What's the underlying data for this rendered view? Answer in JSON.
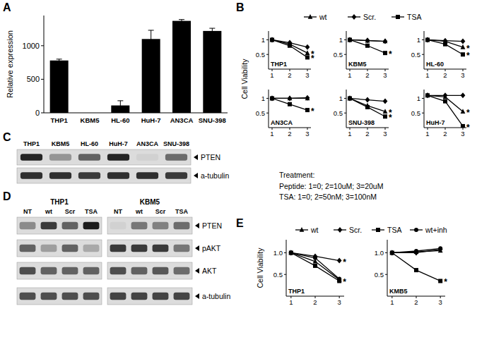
{
  "panel_labels": [
    "A",
    "B",
    "C",
    "D",
    "E"
  ],
  "chart_data": [
    {
      "type": "bar",
      "y_label": "Relative expression",
      "categories": [
        "THP1",
        "KBM5",
        "HL-60",
        "HuH-7",
        "AN3CA",
        "SNU-398"
      ],
      "values": [
        780,
        0,
        110,
        1100,
        1370,
        1220
      ],
      "errors": [
        20,
        0,
        70,
        130,
        20,
        40
      ],
      "color": "#000000",
      "ylim": [
        0,
        1450
      ],
      "yticks": [
        0,
        500,
        1000
      ]
    },
    {
      "type": "line",
      "title": "THP1",
      "y_label": "Cell Viability",
      "legend": "top",
      "x": [
        1,
        2,
        3
      ],
      "xlim": [
        0.8,
        3.2
      ],
      "xticks": [
        1,
        2,
        3
      ],
      "ylim": [
        0,
        1.3
      ],
      "yticks": [
        0.5,
        1
      ],
      "series": [
        {
          "name": "wt",
          "color": "#000000",
          "marker": "triangle",
          "line_style": "solid",
          "values": [
            1,
            0.85,
            0.55
          ]
        },
        {
          "name": "Scr.",
          "color": "#000000",
          "marker": "diamond",
          "line_style": "solid",
          "values": [
            1,
            0.9,
            0.75
          ]
        },
        {
          "name": "TSA",
          "color": "#000000",
          "marker": "square",
          "line_style": "solid",
          "values": [
            1,
            0.8,
            0.4
          ]
        }
      ],
      "annotations": [
        {
          "text": "*",
          "x": 3,
          "y": 0.55
        },
        {
          "text": "*",
          "x": 3,
          "y": 0.4
        }
      ]
    },
    {
      "type": "line",
      "title": "KBM5",
      "x": [
        1,
        2,
        3
      ],
      "xlim": [
        0.8,
        3.2
      ],
      "xticks": [
        1,
        2,
        3
      ],
      "ylim": [
        0,
        1.3
      ],
      "yticks": [
        0.5,
        1
      ],
      "series": [
        {
          "color": "#000000",
          "marker": "triangle",
          "line_style": "solid",
          "values": [
            1,
            0.97,
            0.95
          ]
        },
        {
          "color": "#000000",
          "marker": "diamond",
          "line_style": "solid",
          "values": [
            1,
            0.98,
            0.95
          ]
        },
        {
          "color": "#000000",
          "marker": "square",
          "line_style": "solid",
          "values": [
            1,
            0.8,
            0.55
          ]
        }
      ],
      "annotations": [
        {
          "text": "*",
          "x": 3,
          "y": 0.55
        }
      ]
    },
    {
      "type": "line",
      "title": "HL-60",
      "x": [
        1,
        2,
        3
      ],
      "xlim": [
        0.8,
        3.2
      ],
      "xticks": [
        1,
        2,
        3
      ],
      "ylim": [
        0,
        1.3
      ],
      "yticks": [
        0.5,
        1
      ],
      "series": [
        {
          "color": "#000000",
          "marker": "triangle",
          "line_style": "solid",
          "values": [
            1,
            0.95,
            0.75
          ]
        },
        {
          "color": "#000000",
          "marker": "diamond",
          "line_style": "solid",
          "values": [
            1,
            0.97,
            0.95
          ]
        },
        {
          "color": "#000000",
          "marker": "square",
          "line_style": "solid",
          "values": [
            1,
            0.85,
            0.5
          ]
        }
      ],
      "annotations": [
        {
          "text": "*",
          "x": 3,
          "y": 0.75
        },
        {
          "text": "*",
          "x": 3,
          "y": 0.5
        }
      ]
    },
    {
      "type": "line",
      "title": "AN3CA",
      "x": [
        1,
        2,
        3
      ],
      "xlim": [
        0.8,
        3.2
      ],
      "xticks": [
        1,
        2,
        3
      ],
      "ylim": [
        0,
        1.3
      ],
      "yticks": [
        0.5,
        1
      ],
      "series": [
        {
          "color": "#000000",
          "marker": "triangle",
          "line_style": "solid",
          "values": [
            1,
            1,
            1
          ]
        },
        {
          "color": "#000000",
          "marker": "diamond",
          "line_style": "solid",
          "values": [
            1,
            1,
            1.02
          ]
        },
        {
          "color": "#000000",
          "marker": "square",
          "line_style": "solid",
          "values": [
            1,
            0.8,
            0.6
          ]
        }
      ],
      "annotations": [
        {
          "text": "*",
          "x": 3,
          "y": 0.6
        }
      ]
    },
    {
      "type": "line",
      "title": "SNU-398",
      "x": [
        1,
        2,
        3
      ],
      "xlim": [
        0.8,
        3.2
      ],
      "xticks": [
        1,
        2,
        3
      ],
      "ylim": [
        0,
        1.3
      ],
      "yticks": [
        0.5,
        1
      ],
      "series": [
        {
          "color": "#000000",
          "marker": "triangle",
          "line_style": "solid",
          "values": [
            1,
            0.75,
            0.55
          ]
        },
        {
          "color": "#000000",
          "marker": "diamond",
          "line_style": "solid",
          "values": [
            1,
            0.95,
            0.9
          ]
        },
        {
          "color": "#000000",
          "marker": "square",
          "line_style": "solid",
          "values": [
            1,
            0.7,
            0.38
          ]
        }
      ],
      "annotations": [
        {
          "text": "*",
          "x": 3,
          "y": 0.55
        },
        {
          "text": "*",
          "x": 3,
          "y": 0.38
        }
      ]
    },
    {
      "type": "line",
      "title": "HuH-7",
      "x": [
        1,
        2,
        3
      ],
      "xlim": [
        0.8,
        3.2
      ],
      "xticks": [
        1,
        2,
        3
      ],
      "ylim": [
        0,
        1.3
      ],
      "yticks": [
        0.5,
        1
      ],
      "series": [
        {
          "color": "#000000",
          "marker": "triangle",
          "line_style": "solid",
          "values": [
            1.1,
            1.05,
            0.55
          ]
        },
        {
          "color": "#000000",
          "marker": "diamond",
          "line_style": "solid",
          "values": [
            1.1,
            1.1,
            1.1
          ]
        },
        {
          "color": "#000000",
          "marker": "square",
          "line_style": "solid",
          "values": [
            1.1,
            0.9,
            0.05
          ]
        }
      ],
      "annotations": [
        {
          "text": "*",
          "x": 3,
          "y": 0.55
        },
        {
          "text": "*",
          "x": 3,
          "y": 0.05
        }
      ]
    },
    {
      "type": "line",
      "title": "THP1",
      "y_label": "Cell Viability",
      "legend": "top",
      "x": [
        1,
        2,
        3
      ],
      "xlim": [
        0.8,
        3.2
      ],
      "xticks": [
        1,
        2,
        3
      ],
      "ylim": [
        0,
        1.3
      ],
      "yticks": [
        0.5,
        {
          "value": 1,
          "label": "1.0"
        }
      ],
      "series": [
        {
          "name": "wt",
          "color": "#000000",
          "marker": "triangle",
          "line_style": "solid",
          "values": [
            1,
            0.8,
            0.38
          ]
        },
        {
          "name": "Scr.",
          "color": "#000000",
          "marker": "diamond",
          "line_style": "solid",
          "values": [
            1,
            0.92,
            0.82
          ]
        },
        {
          "name": "TSA",
          "color": "#000000",
          "marker": "square",
          "line_style": "solid",
          "values": [
            1,
            0.7,
            0.35
          ]
        },
        {
          "name": "wt+inh",
          "color": "#000000",
          "marker": "circle",
          "line_style": "solid",
          "values": [
            1,
            0.88,
            0.4
          ]
        }
      ],
      "annotations": [
        {
          "text": "*",
          "x": 3,
          "y": 0.82
        },
        {
          "text": "*",
          "x": 3,
          "y": 0.35
        }
      ]
    },
    {
      "type": "line",
      "title": "KMB5",
      "x": [
        1,
        2,
        3
      ],
      "xlim": [
        0.8,
        3.2
      ],
      "xticks": [
        1,
        2,
        3
      ],
      "ylim": [
        0,
        1.3
      ],
      "yticks": [
        0.5,
        {
          "value": 1,
          "label": "1.0"
        }
      ],
      "series": [
        {
          "color": "#000000",
          "marker": "triangle",
          "line_style": "solid",
          "values": [
            1,
            1.02,
            1.05
          ]
        },
        {
          "color": "#000000",
          "marker": "diamond",
          "line_style": "solid",
          "values": [
            1,
            1.0,
            1.08
          ]
        },
        {
          "color": "#000000",
          "marker": "square",
          "line_style": "solid",
          "values": [
            1,
            0.6,
            0.35
          ]
        },
        {
          "color": "#000000",
          "marker": "circle",
          "line_style": "solid",
          "values": [
            1,
            1.04,
            1.1
          ]
        }
      ],
      "annotations": [
        {
          "text": "*",
          "x": 3,
          "y": 0.35
        }
      ]
    }
  ],
  "blots": [
    {
      "lanes": [
        "THP1",
        "KBM5",
        "HL-60",
        "HuH-7",
        "AN3CA",
        "SNU-398"
      ],
      "rows": [
        {
          "label": "PTEN",
          "intensity": [
            0.9,
            0.35,
            0.6,
            0.9,
            0.05,
            0.55
          ]
        },
        {
          "label": "a-tubulin",
          "intensity": [
            0.85,
            0.85,
            0.8,
            0.85,
            0.85,
            0.8
          ]
        }
      ]
    },
    {
      "groups": [
        {
          "label": "THP1",
          "lanes": [
            "NT",
            "wt",
            "Scr",
            "TSA"
          ]
        },
        {
          "label": "KBM5",
          "lanes": [
            "NT",
            "wt",
            "Scr",
            "TSA"
          ]
        }
      ],
      "rows": [
        {
          "label": "PTEN",
          "intensity": [
            0.4,
            0.8,
            0.6,
            0.95,
            0.05,
            0.5,
            0.45,
            0.55
          ]
        },
        {
          "label": "pAKT",
          "intensity": [
            0.6,
            0.3,
            0.6,
            0.25,
            0.8,
            0.8,
            0.8,
            0.5
          ]
        },
        {
          "label": "AKT",
          "intensity": [
            0.7,
            0.6,
            0.6,
            0.6,
            0.7,
            0.6,
            0.65,
            0.55
          ]
        },
        {
          "label": "a-tubulin",
          "intensity": [
            0.7,
            0.7,
            0.7,
            0.7,
            0.75,
            0.75,
            0.75,
            0.75
          ]
        }
      ]
    }
  ],
  "treatment": {
    "heading": "Treatment:",
    "lines": [
      "Peptide: 1=0; 2=10uM; 3=20uM",
      "TSA: 1=0; 2=50nM; 3=100nM"
    ]
  }
}
